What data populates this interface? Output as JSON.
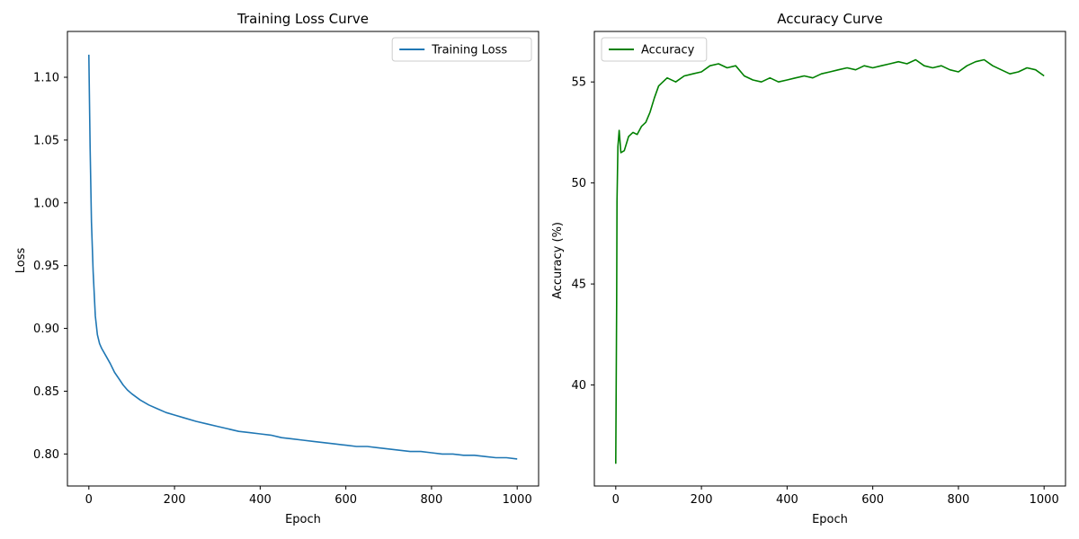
{
  "chart_data": [
    {
      "type": "line",
      "title": "Training Loss Curve",
      "xlabel": "Epoch",
      "ylabel": "Loss",
      "xlim": [
        -50,
        1050
      ],
      "ylim": [
        0.7745,
        1.1365
      ],
      "xticks": [
        0,
        200,
        400,
        600,
        800,
        1000
      ],
      "xtick_labels": [
        "0",
        "200",
        "400",
        "600",
        "800",
        "1000"
      ],
      "yticks": [
        0.8,
        0.85,
        0.9,
        0.95,
        1.0,
        1.05,
        1.1
      ],
      "ytick_labels": [
        "0.80",
        "0.85",
        "0.90",
        "0.95",
        "1.00",
        "1.05",
        "1.10"
      ],
      "grid": false,
      "legend": "top-right",
      "series": [
        {
          "name": "Training Loss",
          "color": "#1f77b4",
          "x": [
            0,
            3,
            6,
            10,
            15,
            20,
            25,
            30,
            40,
            50,
            60,
            70,
            80,
            90,
            100,
            120,
            140,
            160,
            180,
            200,
            220,
            250,
            275,
            300,
            325,
            350,
            375,
            400,
            425,
            450,
            475,
            500,
            525,
            550,
            575,
            600,
            625,
            650,
            675,
            700,
            725,
            750,
            775,
            800,
            825,
            850,
            875,
            900,
            925,
            950,
            975,
            1000
          ],
          "y": [
            1.118,
            1.045,
            0.985,
            0.945,
            0.91,
            0.895,
            0.888,
            0.884,
            0.878,
            0.872,
            0.865,
            0.86,
            0.855,
            0.851,
            0.848,
            0.843,
            0.839,
            0.836,
            0.833,
            0.831,
            0.829,
            0.826,
            0.824,
            0.822,
            0.82,
            0.818,
            0.817,
            0.816,
            0.815,
            0.813,
            0.812,
            0.811,
            0.81,
            0.809,
            0.808,
            0.807,
            0.806,
            0.806,
            0.805,
            0.804,
            0.803,
            0.802,
            0.802,
            0.801,
            0.8,
            0.8,
            0.799,
            0.799,
            0.798,
            0.797,
            0.797,
            0.796
          ]
        }
      ]
    },
    {
      "type": "line",
      "title": "Accuracy Curve",
      "xlabel": "Epoch",
      "ylabel": "Accuracy (%)",
      "xlim": [
        -50,
        1050
      ],
      "ylim": [
        35.0,
        57.5
      ],
      "xticks": [
        0,
        200,
        400,
        600,
        800,
        1000
      ],
      "xtick_labels": [
        "0",
        "200",
        "400",
        "600",
        "800",
        "1000"
      ],
      "yticks": [
        40,
        45,
        50,
        55
      ],
      "ytick_labels": [
        "40",
        "45",
        "50",
        "55"
      ],
      "grid": false,
      "legend": "top-left",
      "series": [
        {
          "name": "Accuracy",
          "color": "#008000",
          "x": [
            0,
            2,
            3,
            5,
            8,
            12,
            20,
            30,
            40,
            50,
            60,
            70,
            80,
            90,
            100,
            110,
            120,
            140,
            160,
            180,
            200,
            220,
            240,
            260,
            280,
            300,
            320,
            340,
            360,
            380,
            400,
            420,
            440,
            460,
            480,
            500,
            520,
            540,
            560,
            580,
            600,
            620,
            640,
            660,
            680,
            700,
            720,
            740,
            760,
            780,
            800,
            820,
            840,
            860,
            880,
            900,
            920,
            940,
            960,
            980,
            1000
          ],
          "y": [
            36.1,
            44.0,
            49.1,
            51.8,
            52.6,
            51.5,
            51.6,
            52.3,
            52.5,
            52.4,
            52.8,
            53.0,
            53.5,
            54.2,
            54.8,
            55.0,
            55.2,
            55.0,
            55.3,
            55.4,
            55.5,
            55.8,
            55.9,
            55.7,
            55.8,
            55.3,
            55.1,
            55.0,
            55.2,
            55.0,
            55.1,
            55.2,
            55.3,
            55.2,
            55.4,
            55.5,
            55.6,
            55.7,
            55.6,
            55.8,
            55.7,
            55.8,
            55.9,
            56.0,
            55.9,
            56.1,
            55.8,
            55.7,
            55.8,
            55.6,
            55.5,
            55.8,
            56.0,
            56.1,
            55.8,
            55.6,
            55.4,
            55.5,
            55.7,
            55.6,
            55.3
          ]
        }
      ]
    }
  ]
}
